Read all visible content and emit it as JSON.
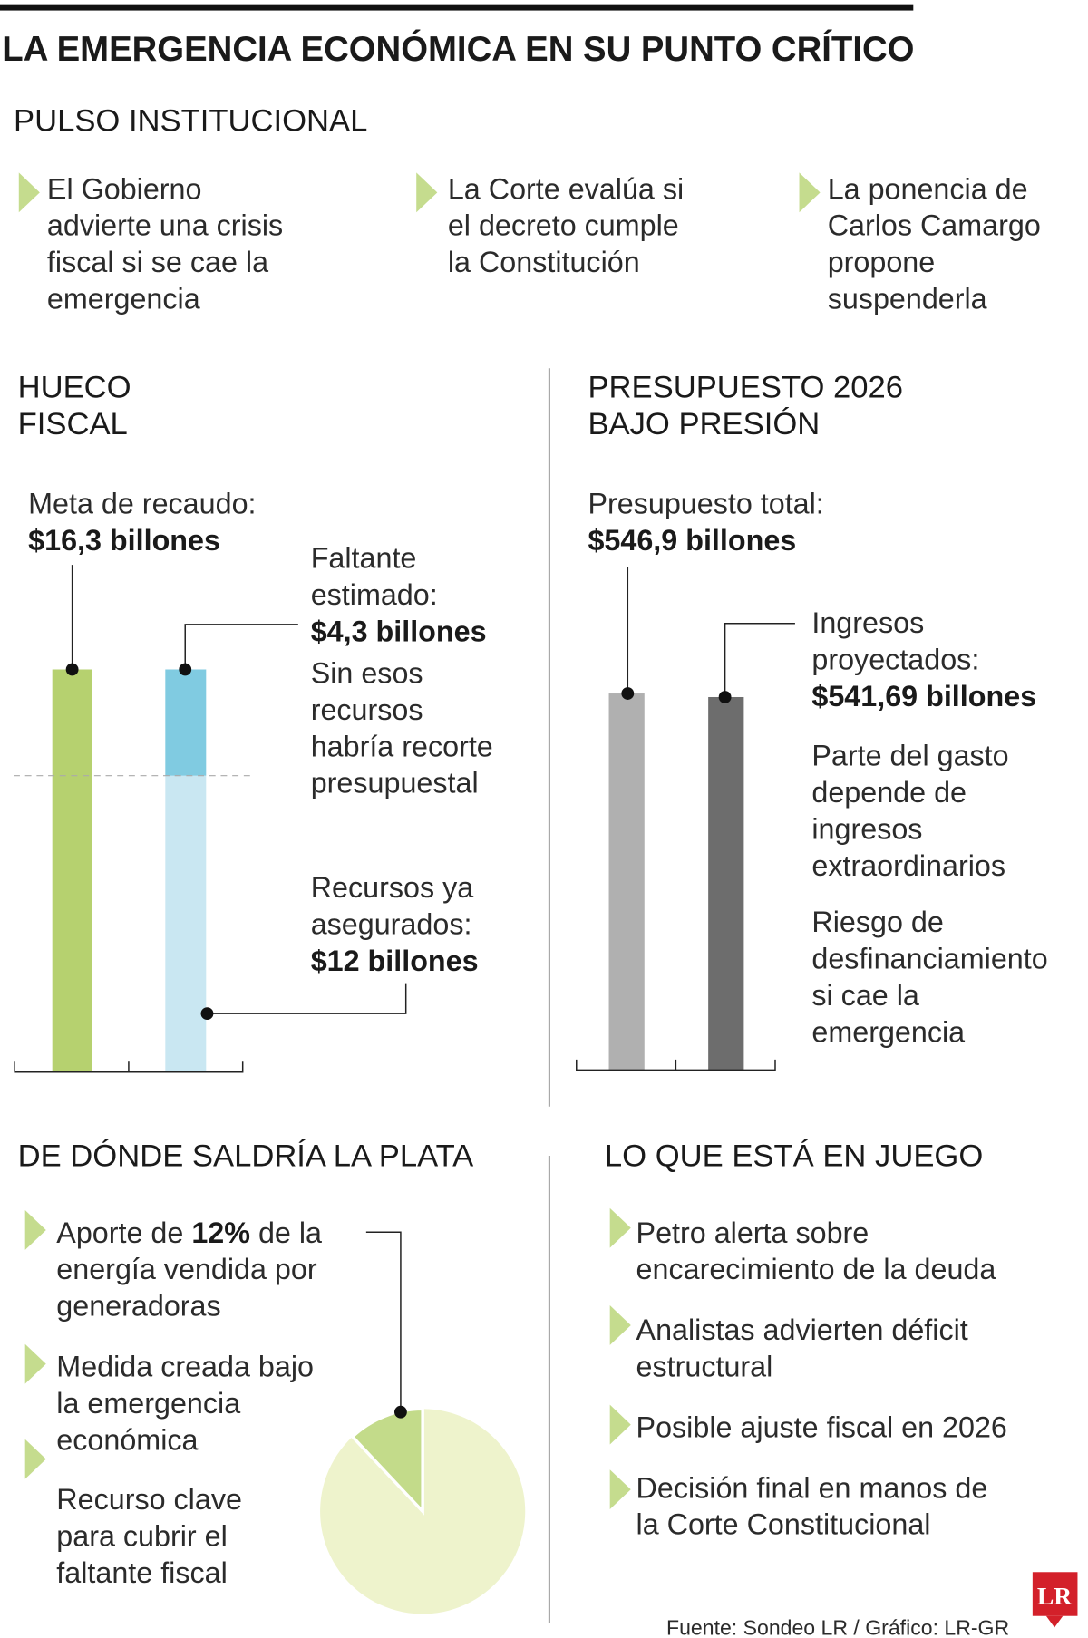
{
  "header": {
    "title": "LA EMERGENCIA ECONÓMICA EN SU PUNTO CRÍTICO"
  },
  "pulso": {
    "title": "PULSO INSTITUCIONAL",
    "items": [
      [
        "El Gobierno",
        "advierte una crisis",
        "fiscal si se cae la",
        "emergencia"
      ],
      [
        "La Corte evalúa si",
        "el decreto cumple",
        "la Constitución"
      ],
      [
        "La ponencia de",
        "Carlos Camargo",
        "propone",
        "suspenderla"
      ]
    ]
  },
  "hueco": {
    "title": [
      "HUECO",
      "FISCAL"
    ],
    "meta": {
      "label": [
        "Meta de recaudo:"
      ],
      "value": 16.3,
      "value_label": "$16,3 billones",
      "color": "#b6d16f"
    },
    "faltante": {
      "label": [
        "Faltante",
        "estimado:"
      ],
      "value": 4.3,
      "value_label": "$4,3 billones",
      "color": "#80cbe1",
      "note": [
        "Sin esos",
        "recursos",
        "habría recorte",
        "presupuestal"
      ]
    },
    "asegurados": {
      "label": [
        "Recursos ya",
        "asegurados:"
      ],
      "value": 12,
      "value_label": "$12 billones",
      "color": "#c9e7f2"
    }
  },
  "presupuesto": {
    "title": [
      "PRESUPUESTO 2026",
      "BAJO PRESIÓN"
    ],
    "total": {
      "label": [
        "Presupuesto total:"
      ],
      "value": 546.9,
      "value_label": "$546,9 billones",
      "color": "#b0b0b0"
    },
    "ingresos": {
      "label": [
        "Ingresos",
        "proyectados:"
      ],
      "value": 541.69,
      "value_label": "$541,69 billones",
      "color": "#6d6d6d"
    },
    "notes": [
      [
        "Parte del gasto",
        "depende de",
        "ingresos",
        "extraordinarios"
      ],
      [
        "Riesgo de",
        "desfinanciamiento",
        "si cae la",
        "emergencia"
      ]
    ]
  },
  "plata": {
    "title": "DE DÓNDE SALDRÍA LA PLATA",
    "first": {
      "pre": "Aporte de ",
      "bold": "12%",
      "post": " de la",
      "rest": [
        "energía vendida por",
        "generadoras"
      ]
    },
    "items": [
      [
        "Medida creada bajo",
        "la emergencia",
        "económica"
      ],
      [
        "Recurso clave",
        "para cubrir el",
        "faltante fiscal"
      ]
    ],
    "share": 12,
    "share_color": "#c3db8a",
    "rest_color": "#eef3cc"
  },
  "juego": {
    "title": "LO QUE ESTÁ EN JUEGO",
    "items": [
      [
        "Petro alerta sobre",
        "encarecimiento de la deuda"
      ],
      [
        "Analistas advierten déficit",
        "estructural"
      ],
      [
        "Posible ajuste fiscal en 2026"
      ],
      [
        "Decisión final en manos de",
        "la Corte Constitucional"
      ]
    ]
  },
  "source": "Fuente: Sondeo LR / Gráfico: LR-GR",
  "logo": "LR"
}
